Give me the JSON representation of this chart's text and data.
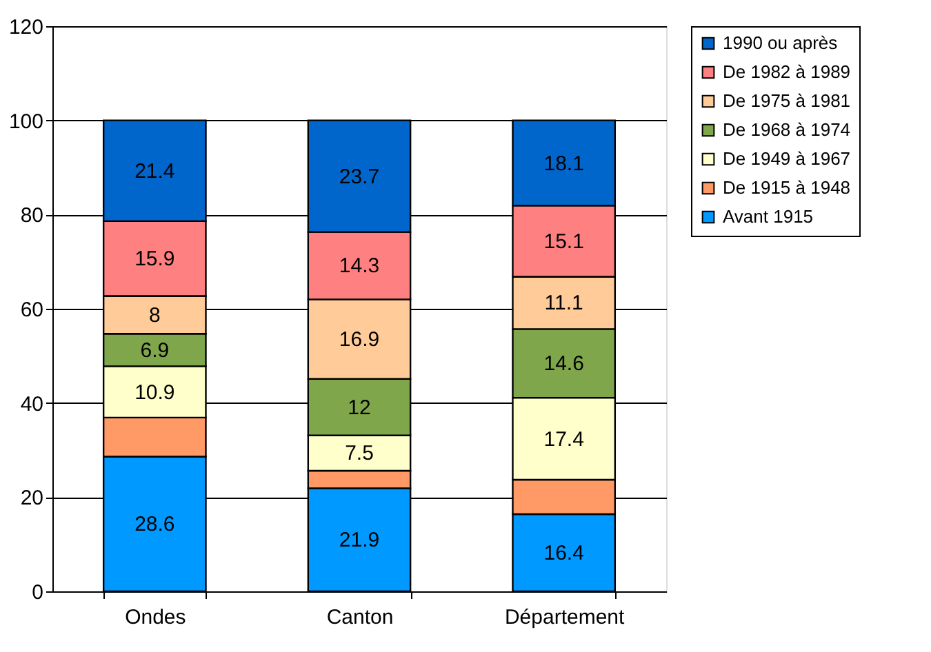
{
  "chart_data": {
    "type": "bar",
    "stacked": true,
    "categories": [
      "Ondes",
      "Canton",
      "Département"
    ],
    "series": [
      {
        "name": "Avant 1915",
        "color": "#0099ff",
        "values": [
          28.6,
          21.9,
          16.4
        ],
        "value_labels": [
          "28.6",
          "21.9",
          "16.4"
        ]
      },
      {
        "name": "De 1915 à 1948",
        "color": "#ff9966",
        "values": [
          8.3,
          3.7,
          7.3
        ],
        "value_labels": [
          null,
          null,
          null
        ]
      },
      {
        "name": "De 1949 à 1967",
        "color": "#ffffcc",
        "values": [
          10.9,
          7.5,
          17.4
        ],
        "value_labels": [
          "10.9",
          "7.5",
          "17.4"
        ]
      },
      {
        "name": "De 1968 à 1974",
        "color": "#7fa64a",
        "values": [
          6.9,
          12,
          14.6
        ],
        "value_labels": [
          "6.9",
          "12",
          "14.6"
        ]
      },
      {
        "name": "De 1975 à 1981",
        "color": "#ffcc99",
        "values": [
          8,
          16.9,
          11.1
        ],
        "value_labels": [
          "8",
          "16.9",
          "11.1"
        ]
      },
      {
        "name": "De 1982 à 1989",
        "color": "#ff8080",
        "values": [
          15.9,
          14.3,
          15.1
        ],
        "value_labels": [
          "15.9",
          "14.3",
          "15.1"
        ]
      },
      {
        "name": "1990 ou après",
        "color": "#0066cc",
        "values": [
          21.4,
          23.7,
          18.1
        ],
        "value_labels": [
          "21.4",
          "23.7",
          "18.1"
        ]
      }
    ],
    "ylim": [
      0,
      120
    ],
    "yticks": [
      0,
      20,
      40,
      60,
      80,
      100,
      120
    ],
    "grid": "y",
    "legend": "right"
  }
}
